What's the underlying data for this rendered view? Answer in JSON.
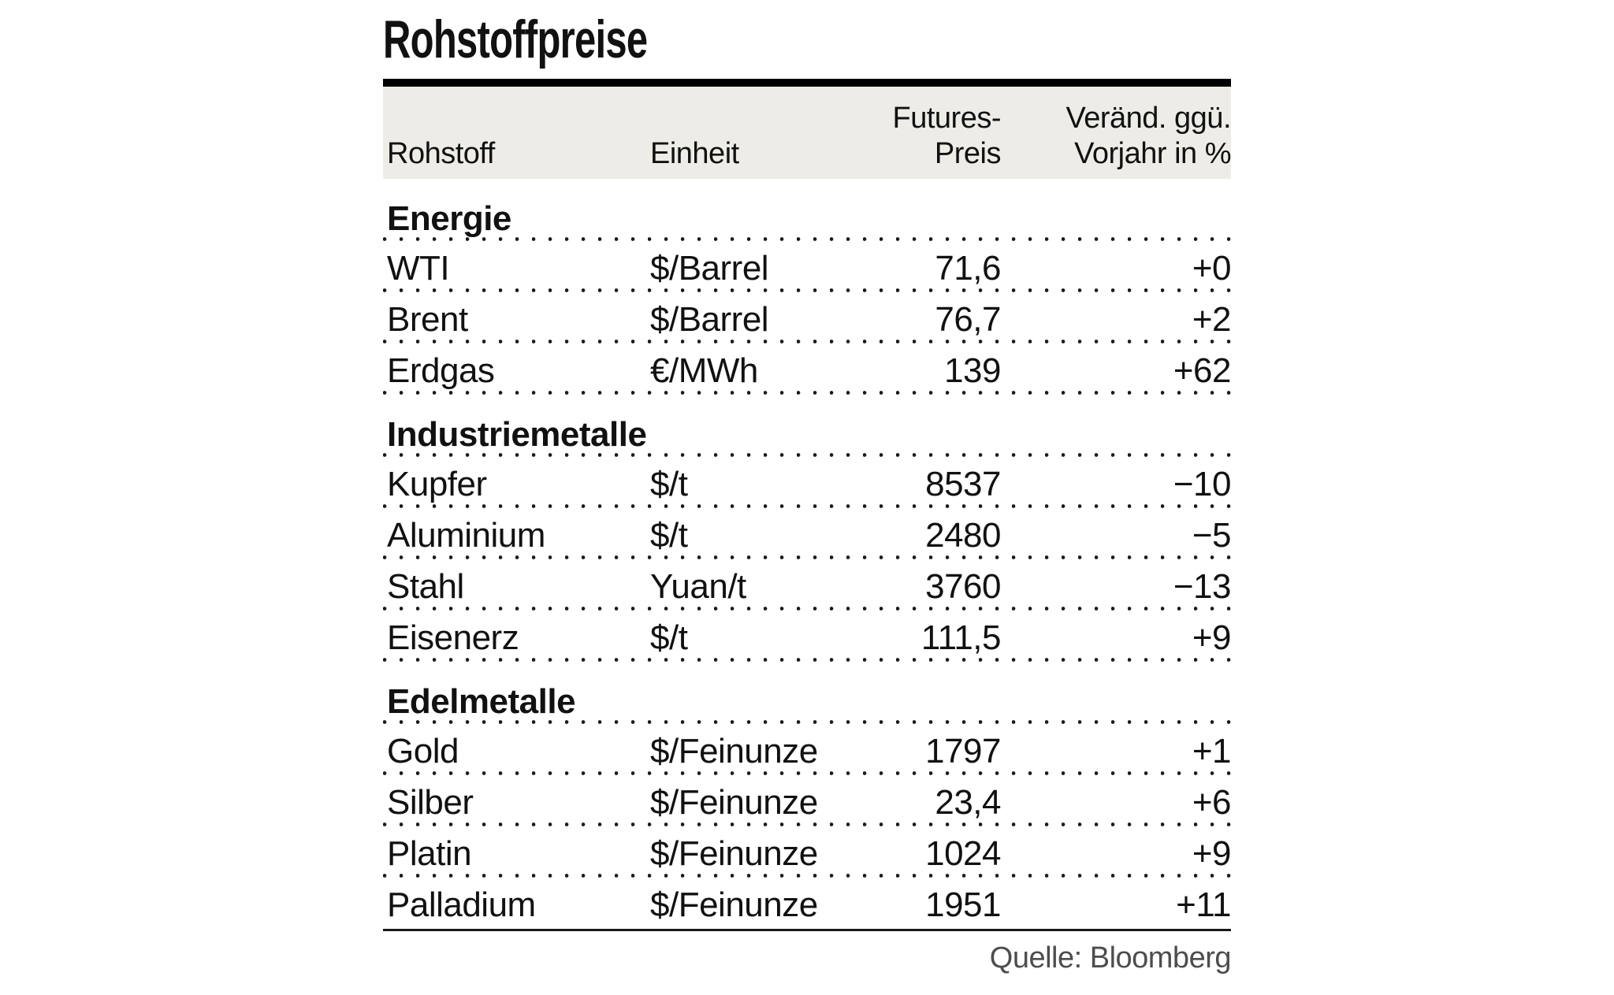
{
  "title": "Rohstoffpreise",
  "header": {
    "col1": "Rohstoff",
    "col2": "Einheit",
    "col3_line1": "Futures-",
    "col3_line2": "Preis",
    "col4_line1": "Veränd. ggü.",
    "col4_line2": "Vorjahr in %"
  },
  "source": "Quelle: Bloomberg",
  "colors": {
    "header_background": "#edece6",
    "rule": "#000000",
    "text": "#111111",
    "source_text": "#4d4d4d"
  },
  "chart_data": {
    "type": "table",
    "title": "Rohstoffpreise",
    "columns": [
      "Rohstoff",
      "Einheit",
      "Futures-Preis",
      "Veränd. ggü. Vorjahr in %"
    ],
    "sections": [
      {
        "name": "Energie",
        "rows": [
          [
            "WTI",
            "$/Barrel",
            "71,6",
            "+0"
          ],
          [
            "Brent",
            "$/Barrel",
            "76,7",
            "+2"
          ],
          [
            "Erdgas",
            "€/MWh",
            "139",
            "+62"
          ]
        ]
      },
      {
        "name": "Industriemetalle",
        "rows": [
          [
            "Kupfer",
            "$/t",
            "8537",
            "−10"
          ],
          [
            "Aluminium",
            "$/t",
            "2480",
            "−5"
          ],
          [
            "Stahl",
            "Yuan/t",
            "3760",
            "−13"
          ],
          [
            "Eisenerz",
            "$/t",
            "111,5",
            "+9"
          ]
        ]
      },
      {
        "name": "Edelmetalle",
        "rows": [
          [
            "Gold",
            "$/Feinunze",
            "1797",
            "+1"
          ],
          [
            "Silber",
            "$/Feinunze",
            "23,4",
            "+6"
          ],
          [
            "Platin",
            "$/Feinunze",
            "1024",
            "+9"
          ],
          [
            "Palladium",
            "$/Feinunze",
            "1951",
            "+11"
          ]
        ]
      }
    ]
  }
}
